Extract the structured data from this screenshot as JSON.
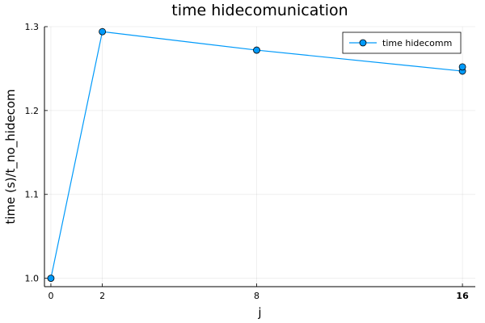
{
  "chart_data": {
    "type": "line",
    "title": "time hidecomunication",
    "xlabel": "j",
    "ylabel": "time (s)/t_no_hidecom",
    "x_ticks": [
      0,
      2,
      8,
      16
    ],
    "x_tick_labels": [
      "0",
      "2",
      "8",
      "16"
    ],
    "x_emphasized_ticks": [
      "16"
    ],
    "y_ticks": [
      1.0,
      1.1,
      1.2,
      1.3
    ],
    "y_tick_labels": [
      "1.0",
      "1.1",
      "1.2",
      "1.3"
    ],
    "xlim": [
      -0.25,
      16.5
    ],
    "ylim": [
      0.99,
      1.3
    ],
    "grid": true,
    "legend_position": "top-right",
    "series": [
      {
        "name": "time hidecomm",
        "color": "#009AFA",
        "points": [
          {
            "x": 0,
            "y": 1.0
          },
          {
            "x": 2,
            "y": 1.294
          },
          {
            "x": 8,
            "y": 1.272
          },
          {
            "x": 16,
            "y": 1.247
          }
        ],
        "extra_markers": [
          {
            "x": 16,
            "y": 1.252
          }
        ]
      }
    ]
  }
}
